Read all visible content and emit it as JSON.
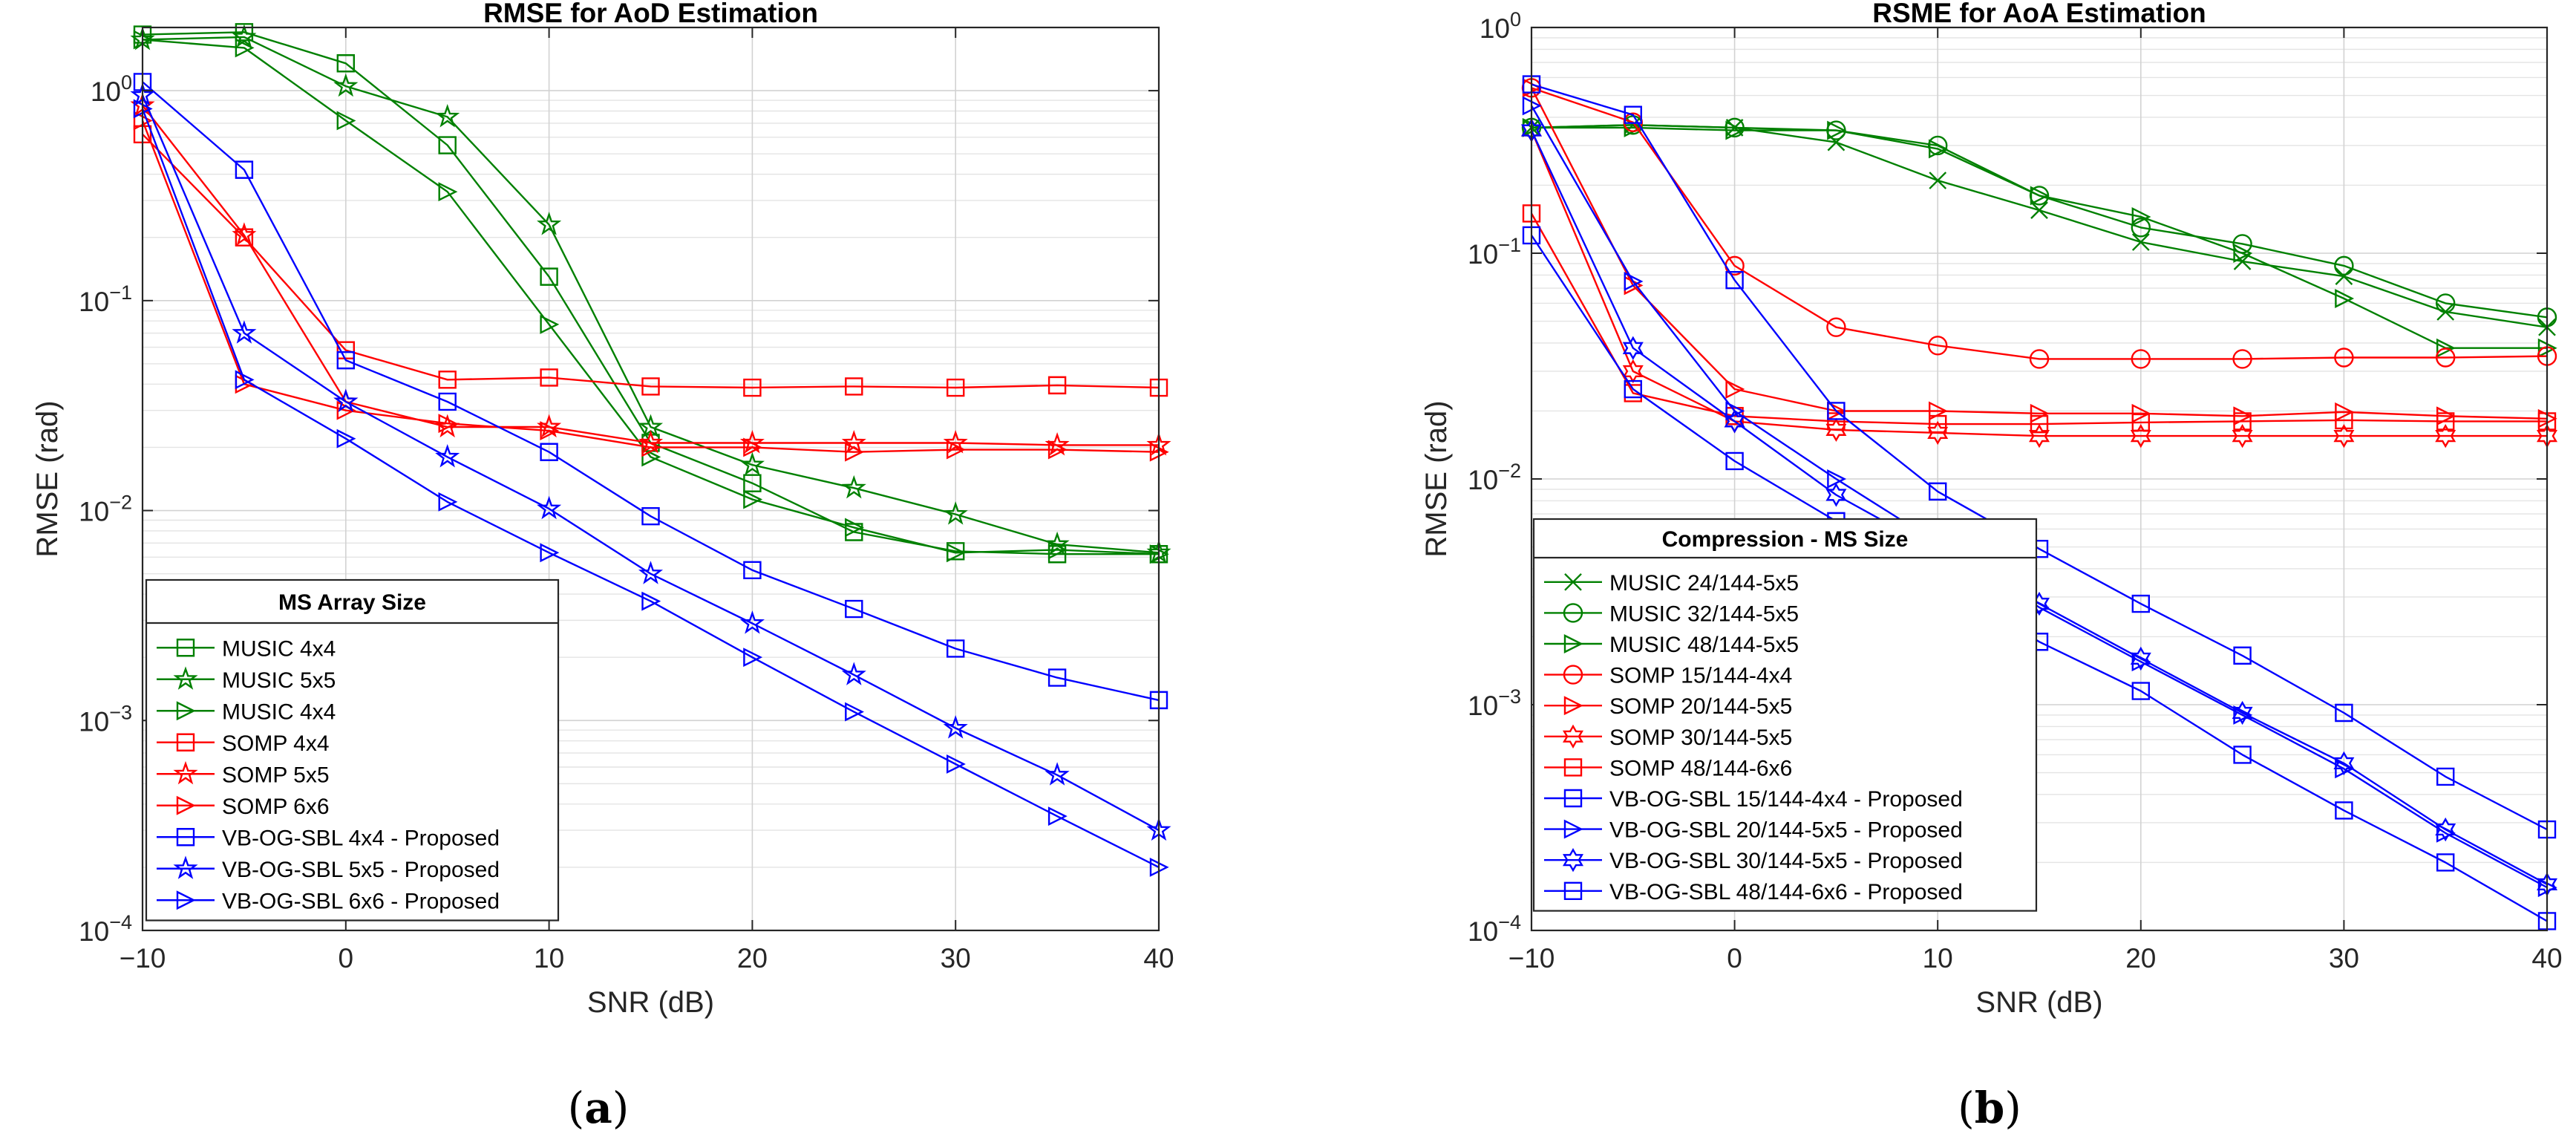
{
  "chart_data": [
    {
      "type": "line",
      "y_scale": "log",
      "title": "RMSE for AoD Estimation",
      "xlabel": "SNR (dB)",
      "ylabel": "RMSE (rad)",
      "xlim": [
        -10,
        40
      ],
      "ylim": [
        0.0001,
        2
      ],
      "x_ticks": [
        -10,
        0,
        10,
        20,
        30,
        40
      ],
      "x_tick_labels": [
        "−10",
        "0",
        "10",
        "20",
        "30",
        "40"
      ],
      "y_ticks": [
        0.0001,
        0.001,
        0.01,
        0.1,
        1
      ],
      "y_tick_bases": [
        "10",
        "10",
        "10",
        "10",
        "10"
      ],
      "y_tick_exps": [
        "−4",
        "−3",
        "−2",
        "−1",
        "0"
      ],
      "grid": true,
      "legend_title": "MS Array Size",
      "legend_position": "bottom-left",
      "panel_label": "(a)",
      "x": [
        -10,
        -5,
        0,
        5,
        10,
        15,
        20,
        25,
        30,
        35,
        40
      ],
      "series": [
        {
          "name": "MUSIC 4x4",
          "color": "#008000",
          "marker": "square",
          "values": [
            1.85,
            1.9,
            1.35,
            0.55,
            0.13,
            0.021,
            0.0135,
            0.0079,
            0.0064,
            0.0062,
            0.0062
          ]
        },
        {
          "name": "MUSIC 5x5",
          "color": "#008000",
          "marker": "star",
          "values": [
            1.75,
            1.8,
            1.05,
            0.75,
            0.23,
            0.025,
            0.0165,
            0.0128,
            0.0096,
            0.0069,
            0.0063
          ]
        },
        {
          "name": "MUSIC 4x4",
          "color": "#008000",
          "marker": "triangle-right",
          "values": [
            1.75,
            1.6,
            0.72,
            0.33,
            0.077,
            0.018,
            0.0113,
            0.0083,
            0.0063,
            0.0065,
            0.0062
          ]
        },
        {
          "name": "SOMP 4x4",
          "color": "#ff0000",
          "marker": "square",
          "values": [
            0.62,
            0.2,
            0.058,
            0.042,
            0.043,
            0.039,
            0.0385,
            0.039,
            0.0385,
            0.0395,
            0.0385
          ]
        },
        {
          "name": "SOMP 5x5",
          "color": "#ff0000",
          "marker": "star",
          "values": [
            0.85,
            0.205,
            0.033,
            0.025,
            0.025,
            0.021,
            0.021,
            0.021,
            0.021,
            0.0205,
            0.0205
          ]
        },
        {
          "name": "SOMP 6x6",
          "color": "#ff0000",
          "marker": "triangle-right",
          "values": [
            0.72,
            0.04,
            0.03,
            0.026,
            0.024,
            0.02,
            0.02,
            0.019,
            0.0195,
            0.0195,
            0.019
          ]
        },
        {
          "name": "VB-OG-SBL 4x4 - Proposed",
          "color": "#0000ff",
          "marker": "square",
          "values": [
            1.1,
            0.42,
            0.052,
            0.033,
            0.019,
            0.0094,
            0.0052,
            0.0034,
            0.0022,
            0.0016,
            0.00125
          ]
        },
        {
          "name": "VB-OG-SBL 5x5 - Proposed",
          "color": "#0000ff",
          "marker": "star",
          "values": [
            0.95,
            0.07,
            0.033,
            0.018,
            0.0102,
            0.005,
            0.0029,
            0.00165,
            0.00092,
            0.00055,
            0.0003
          ]
        },
        {
          "name": "VB-OG-SBL 6x6 - Proposed",
          "color": "#0000ff",
          "marker": "triangle-right",
          "values": [
            0.82,
            0.042,
            0.022,
            0.011,
            0.0063,
            0.0037,
            0.002,
            0.0011,
            0.00062,
            0.00035,
            0.0002
          ]
        }
      ]
    },
    {
      "type": "line",
      "y_scale": "log",
      "title": "RSME for AoA Estimation",
      "xlabel": "SNR (dB)",
      "ylabel": "RMSE (rad)",
      "xlim": [
        -10,
        40
      ],
      "ylim": [
        0.0001,
        1
      ],
      "x_ticks": [
        -10,
        0,
        10,
        20,
        30,
        40
      ],
      "x_tick_labels": [
        "−10",
        "0",
        "10",
        "20",
        "30",
        "40"
      ],
      "y_ticks": [
        0.0001,
        0.001,
        0.01,
        0.1,
        1
      ],
      "y_tick_bases": [
        "10",
        "10",
        "10",
        "10",
        "10"
      ],
      "y_tick_exps": [
        "−4",
        "−3",
        "−2",
        "−1",
        "0"
      ],
      "grid": true,
      "legend_title": "Compression - MS Size",
      "legend_position": "bottom-left",
      "panel_label": "(b)",
      "x": [
        -10,
        -5,
        0,
        5,
        10,
        15,
        20,
        25,
        30,
        35,
        40
      ],
      "series": [
        {
          "name": "MUSIC 24/144-5x5",
          "color": "#008000",
          "marker": "x",
          "values": [
            0.36,
            0.37,
            0.36,
            0.31,
            0.21,
            0.155,
            0.112,
            0.092,
            0.079,
            0.055,
            0.047
          ]
        },
        {
          "name": "MUSIC 32/144-5x5",
          "color": "#008000",
          "marker": "circle",
          "values": [
            0.36,
            0.37,
            0.36,
            0.35,
            0.3,
            0.18,
            0.13,
            0.11,
            0.088,
            0.06,
            0.052
          ]
        },
        {
          "name": "MUSIC 48/144-5x5",
          "color": "#008000",
          "marker": "triangle-right",
          "values": [
            0.36,
            0.36,
            0.35,
            0.35,
            0.29,
            0.18,
            0.145,
            0.1,
            0.063,
            0.038,
            0.038
          ]
        },
        {
          "name": "SOMP 15/144-4x4",
          "color": "#ff0000",
          "marker": "circle",
          "values": [
            0.54,
            0.38,
            0.088,
            0.047,
            0.039,
            0.034,
            0.034,
            0.034,
            0.0345,
            0.0345,
            0.035
          ]
        },
        {
          "name": "SOMP 20/144-5x5",
          "color": "#ff0000",
          "marker": "triangle-right",
          "values": [
            0.54,
            0.072,
            0.025,
            0.02,
            0.02,
            0.0195,
            0.0195,
            0.019,
            0.0198,
            0.019,
            0.0185
          ]
        },
        {
          "name": "SOMP 30/144-5x5",
          "color": "#ff0000",
          "marker": "hexagram",
          "values": [
            0.35,
            0.03,
            0.018,
            0.0165,
            0.016,
            0.0155,
            0.0155,
            0.0155,
            0.0155,
            0.0155,
            0.0155
          ]
        },
        {
          "name": "SOMP 48/144-6x6",
          "color": "#ff0000",
          "marker": "square",
          "values": [
            0.15,
            0.024,
            0.019,
            0.018,
            0.0175,
            0.0175,
            0.0178,
            0.018,
            0.0182,
            0.018,
            0.018
          ]
        },
        {
          "name": "VB-OG-SBL 15/144-4x4 - Proposed",
          "color": "#0000ff",
          "marker": "square",
          "values": [
            0.56,
            0.41,
            0.076,
            0.02,
            0.0088,
            0.0049,
            0.0028,
            0.00165,
            0.00092,
            0.00048,
            0.00028
          ]
        },
        {
          "name": "VB-OG-SBL 20/144-5x5 - Proposed",
          "color": "#0000ff",
          "marker": "triangle-right",
          "values": [
            0.45,
            0.075,
            0.02,
            0.01,
            0.0052,
            0.0027,
            0.00155,
            0.0009,
            0.00052,
            0.00027,
            0.000155
          ]
        },
        {
          "name": "VB-OG-SBL 30/144-5x5 - Proposed",
          "color": "#0000ff",
          "marker": "hexagram",
          "values": [
            0.35,
            0.038,
            0.018,
            0.0085,
            0.0048,
            0.0028,
            0.0016,
            0.00092,
            0.00055,
            0.00028,
            0.00016
          ]
        },
        {
          "name": "VB-OG-SBL 48/144-6x6 - Proposed",
          "color": "#0000ff",
          "marker": "square",
          "values": [
            0.12,
            0.025,
            0.012,
            0.0065,
            0.0036,
            0.0019,
            0.00115,
            0.0006,
            0.00034,
            0.0002,
            0.00011
          ]
        }
      ]
    }
  ]
}
